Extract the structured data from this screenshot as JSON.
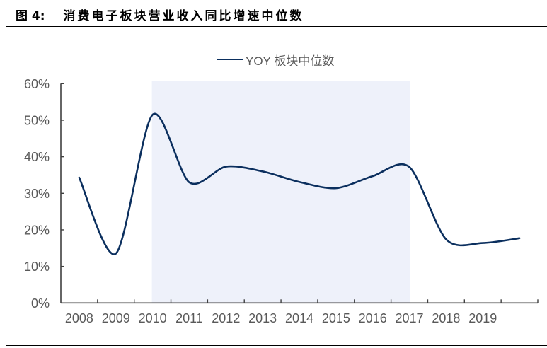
{
  "figure": {
    "label": "图 4:",
    "title": "消费电子板块营业收入同比增速中位数"
  },
  "legend": {
    "label": "YOY 板块中位数"
  },
  "colors": {
    "line": "#0B2F5E",
    "highlight_band": "#EEF1FA",
    "axis": "#404040",
    "tick_label": "#595959"
  },
  "chart_data": {
    "type": "line",
    "title": "消费电子板块营业收入同比增速中位数",
    "xlabel": "",
    "ylabel": "",
    "categories": [
      "2008",
      "2009",
      "2010",
      "2011",
      "2012",
      "2013",
      "2014",
      "2015",
      "2016",
      "2017",
      "2018",
      "2019",
      ""
    ],
    "series": [
      {
        "name": "YOY 板块中位数",
        "values": [
          34.3,
          13.5,
          51.5,
          33.0,
          37.3,
          36.0,
          33.1,
          31.4,
          34.7,
          37.2,
          17.4,
          16.4,
          17.7
        ],
        "smooth": true
      }
    ],
    "ylim": [
      0,
      60
    ],
    "yticks": [
      0,
      10,
      20,
      30,
      40,
      50,
      60
    ],
    "ytick_labels": [
      "0%",
      "10%",
      "20%",
      "30%",
      "40%",
      "50%",
      "60%"
    ],
    "y_unit": "%",
    "grid": false,
    "legend_position": "top",
    "highlight_band": {
      "start": "2010",
      "end": "2017"
    }
  }
}
